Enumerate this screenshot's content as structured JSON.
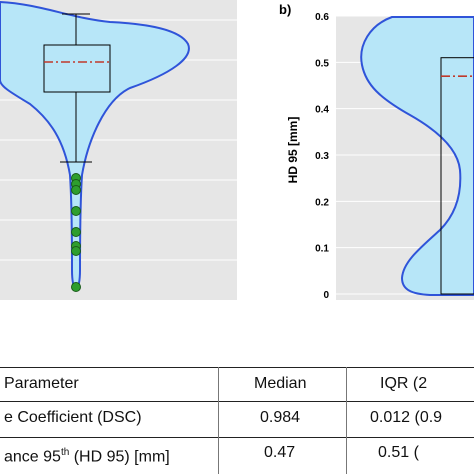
{
  "chart_data": [
    {
      "panel": "a",
      "type": "violin",
      "ylabel": "",
      "ylim": [
        null,
        null
      ],
      "box": {
        "q1": "",
        "q3": "",
        "median": "",
        "whisker_low": ""
      },
      "outliers": [],
      "note": ""
    },
    {
      "panel": "b",
      "type": "violin",
      "panel_label": "b)",
      "ylabel": "HD 95 [mm]",
      "ylim": [
        0,
        0.6
      ],
      "yticks": [
        "0",
        "0.1",
        "0.2",
        "0.3",
        "0.4",
        "0.5",
        "0.6"
      ],
      "box": {
        "q1": 0,
        "q3": 0.51,
        "median": 0.47
      },
      "grid": true
    }
  ],
  "table": {
    "headers": {
      "parameter": "Parameter",
      "median": "Median",
      "iqr": "IQR (2"
    },
    "rows": [
      {
        "parameter": "e Coefficient (DSC)",
        "median": "0.984",
        "iqr": "0.012 (0.9"
      },
      {
        "parameter_prefix": "ance 95",
        "parameter_sup": "th",
        "parameter_suffix": " (HD 95) [mm]",
        "median": "0.47",
        "iqr": "0.51 ("
      }
    ]
  },
  "colors": {
    "violin_fill": "#b7e6f8",
    "violin_edge": "#2f54d9",
    "median_line": "#c0392b",
    "outlier": "#2e9e2e",
    "panel_bg": "#e6e6e6"
  }
}
